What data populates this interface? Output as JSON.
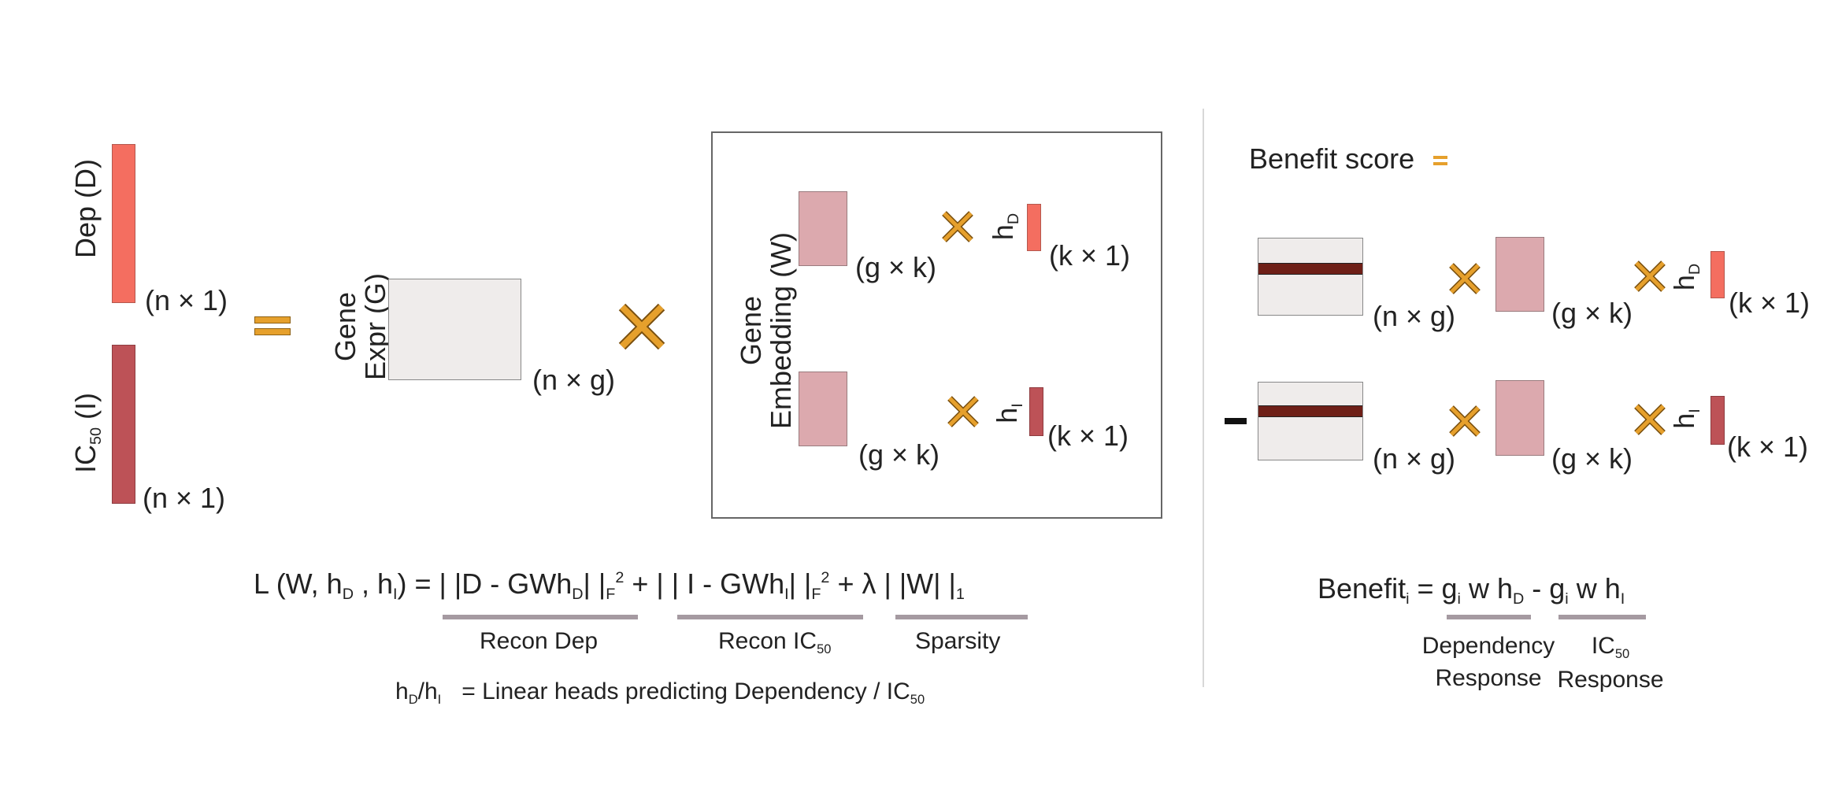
{
  "left": {
    "dep_label": "Dep (D)",
    "ic50_label_main": "IC",
    "ic50_label_sub": "50",
    "ic50_label_rest": " (I)",
    "dim_n1": "(n × 1)",
    "gene_expr_label_line1": "Gene",
    "gene_expr_label_line2": "Expr (G)",
    "dim_ng": "(n × g)"
  },
  "embedding_box": {
    "label_line1": "Gene",
    "label_line2": "Embedding (W)",
    "dim_gk": "(g × k)",
    "dim_k1": "(k × 1)",
    "head_d": "h",
    "head_d_sub": "D",
    "head_i": "h",
    "head_i_sub": "I"
  },
  "loss": {
    "prefix": "L (W, h",
    "sub_d": "D",
    "mid1": " , h",
    "sub_i": "I",
    "mid2": ") = | |D - GWh",
    "sub_d2": "D",
    "mid3": "| |",
    "sub_f1": "F",
    "sup_2a": "2",
    "mid4": " + | | I - GWh",
    "sub_i2": "I",
    "mid5": "| |",
    "sub_f2": "F",
    "sup_2b": "2",
    "mid6": " + λ | |W| |",
    "sub_1": "1",
    "term_recon_dep": "Recon Dep",
    "term_recon_ic50_main": "Recon IC",
    "term_recon_ic50_sub": "50",
    "term_sparsity": "Sparsity"
  },
  "heads_note": {
    "h1": "h",
    "h1_sub": "D",
    "slash": "/h",
    "h2_sub": "I",
    "text": "= Linear heads predicting Dependency / IC",
    "text_sub": "50"
  },
  "benefit": {
    "title": "Benefit score",
    "minus": "-",
    "dim_ng": "(n × g)",
    "dim_gk": "(g × k)",
    "dim_k1": "(k × 1)",
    "head": "h",
    "head_d_sub": "D",
    "head_i_sub": "I",
    "formula_main": "Benefit",
    "formula_sub_i": "i",
    "formula_eq": " = g",
    "formula_gi_sub": "i",
    "formula_mid": " w h",
    "formula_hd_sub": "D",
    "formula_minus": " - g",
    "formula_gi_sub2": "i",
    "formula_mid2": " w h",
    "formula_hi_sub": "I",
    "term1_line1": "Dependency",
    "term1_line2": "Response",
    "term2_line1_main": "IC",
    "term2_line1_sub": "50",
    "term2_line2": "Response"
  },
  "colors": {
    "dep": "#f46e60",
    "ic50": "#bd5257",
    "gene_expr": "#efeceb",
    "embedding": "#dca9ae",
    "cross": "#e6a02c",
    "row_highlight": "#6e1f17",
    "underline": "#a59aa1"
  }
}
